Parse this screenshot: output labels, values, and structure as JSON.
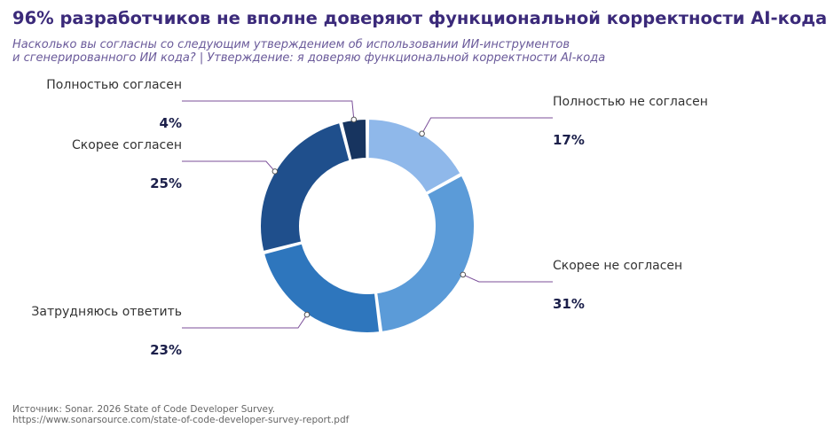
{
  "title": "96% разработчиков не вполне доверяют функциональной корректности AI-кода",
  "subtitle": {
    "line1": "Насколько вы согласны со следующим утверждением об использовании ИИ-инструментов",
    "line2": "и сгенерированного ИИ кода?  |  Утверждение: я доверяю функциональной корректности AI-кода"
  },
  "source": {
    "line1": "Источник: Sonar. 2026 State of Code Developer Survey.",
    "line2": "https://www.sonarsource.com/state-of-code-developer-survey-report.pdf"
  },
  "colors": {
    "leader": "#7b4f9a",
    "label_text": "#333333",
    "value_text": "#1b1f4a"
  },
  "chart_data": {
    "type": "pie",
    "variant": "donut",
    "categories": [
      "Полностью не согласен",
      "Скорее не согласен",
      "Затрудняюсь ответить",
      "Скорее согласен",
      "Полностью согласен"
    ],
    "values": [
      17,
      31,
      23,
      25,
      4
    ],
    "value_labels": [
      "17%",
      "31%",
      "23%",
      "25%",
      "4%"
    ],
    "colors": [
      "#8fb8ea",
      "#5b9bd8",
      "#2e76bd",
      "#1f4f8c",
      "#17345f"
    ],
    "start": "12 o'clock",
    "direction": "clockwise"
  }
}
